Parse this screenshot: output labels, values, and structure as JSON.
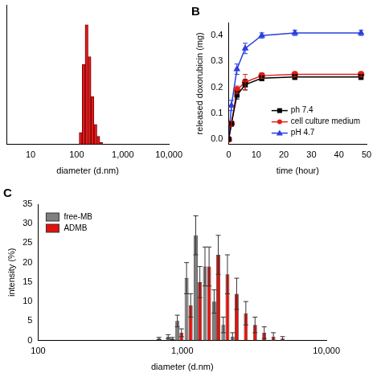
{
  "chart_data": [
    {
      "type": "bar",
      "x": [
        122,
        142,
        164,
        190,
        220,
        255,
        295,
        342
      ],
      "values": [
        3,
        20,
        30,
        22,
        12,
        5,
        2,
        0.5
      ],
      "color": "#e31a1c",
      "log": "x",
      "xlim": [
        3,
        10000
      ],
      "xticks": [
        10,
        100,
        {
          "value": 1000,
          "label": "1,000"
        },
        {
          "value": 10000,
          "label": "10,000"
        }
      ],
      "ylim": [
        0,
        35
      ],
      "xlabel": "diameter (d.nm)",
      "tick_labels": "x",
      "grid": false
    },
    {
      "type": "line",
      "title": "B",
      "x": [
        0,
        1,
        3,
        6,
        12,
        24,
        48
      ],
      "series": [
        {
          "name": "ph 7.4",
          "color": "#000000",
          "marker": "square",
          "values": [
            0,
            0.06,
            0.17,
            0.21,
            0.235,
            0.24,
            0.24
          ],
          "errors": [
            0,
            0.01,
            0.015,
            0.02,
            0.01,
            0.01,
            0.01
          ]
        },
        {
          "name": "cell culture medium",
          "color": "#e0201b",
          "marker": "circle",
          "values": [
            0,
            0.06,
            0.19,
            0.22,
            0.245,
            0.25,
            0.25
          ],
          "errors": [
            0,
            0.01,
            0.015,
            0.03,
            0.01,
            0.01,
            0.01
          ]
        },
        {
          "name": "pH 4.7",
          "color": "#2a3fe0",
          "marker": "triangle",
          "values": [
            0,
            0.13,
            0.27,
            0.35,
            0.4,
            0.41,
            0.41
          ],
          "errors": [
            0,
            0.02,
            0.02,
            0.02,
            0.01,
            0.01,
            0.01
          ]
        }
      ],
      "xlim": [
        0,
        50
      ],
      "xticks": [
        0,
        10,
        20,
        30,
        40,
        50
      ],
      "ylim": [
        -0.02,
        0.45
      ],
      "yticks": [
        {
          "value": 0,
          "label": "0.0"
        },
        0.1,
        0.2,
        0.3,
        0.4
      ],
      "xlabel": "time (hour)",
      "ylabel": "released doxorubicin (mg)",
      "legend": "lower right",
      "grid": false
    },
    {
      "type": "bar",
      "title": "C",
      "x": [
        712,
        825,
        955,
        1106,
        1281,
        1484,
        1718,
        1990,
        2305,
        2670,
        3091,
        3580,
        4145,
        4801,
        5560
      ],
      "series": [
        {
          "name": "free-MB",
          "color": "#7f7f7f",
          "values": [
            0.5,
            1,
            5,
            16,
            27,
            19,
            10,
            4,
            1,
            0,
            0,
            0,
            0,
            0,
            0
          ],
          "errors": [
            0.3,
            0.5,
            1.5,
            4,
            5,
            5,
            3,
            2,
            1,
            0,
            0,
            0,
            0,
            0,
            0
          ]
        },
        {
          "name": "ADMB",
          "color": "#e3120b",
          "values": [
            0,
            0.5,
            2,
            9,
            15,
            19,
            22,
            17,
            12,
            7,
            4,
            2,
            1,
            0.5,
            0
          ],
          "errors": [
            0,
            0.3,
            1,
            3,
            4,
            5,
            5,
            5,
            4,
            3,
            2,
            1.5,
            1,
            0.5,
            0
          ]
        }
      ],
      "log": "x",
      "xlim": [
        100,
        10000
      ],
      "xticks": [
        100,
        {
          "value": 1000,
          "label": "1,000"
        },
        {
          "value": 10000,
          "label": "10,000"
        }
      ],
      "ylim": [
        0,
        35
      ],
      "yticks": [
        0,
        5,
        10,
        15,
        20,
        25,
        30,
        35
      ],
      "xlabel": "diameter (d.nm)",
      "ylabel": "intensity (%)",
      "legend": "upper left",
      "grid": false
    }
  ]
}
